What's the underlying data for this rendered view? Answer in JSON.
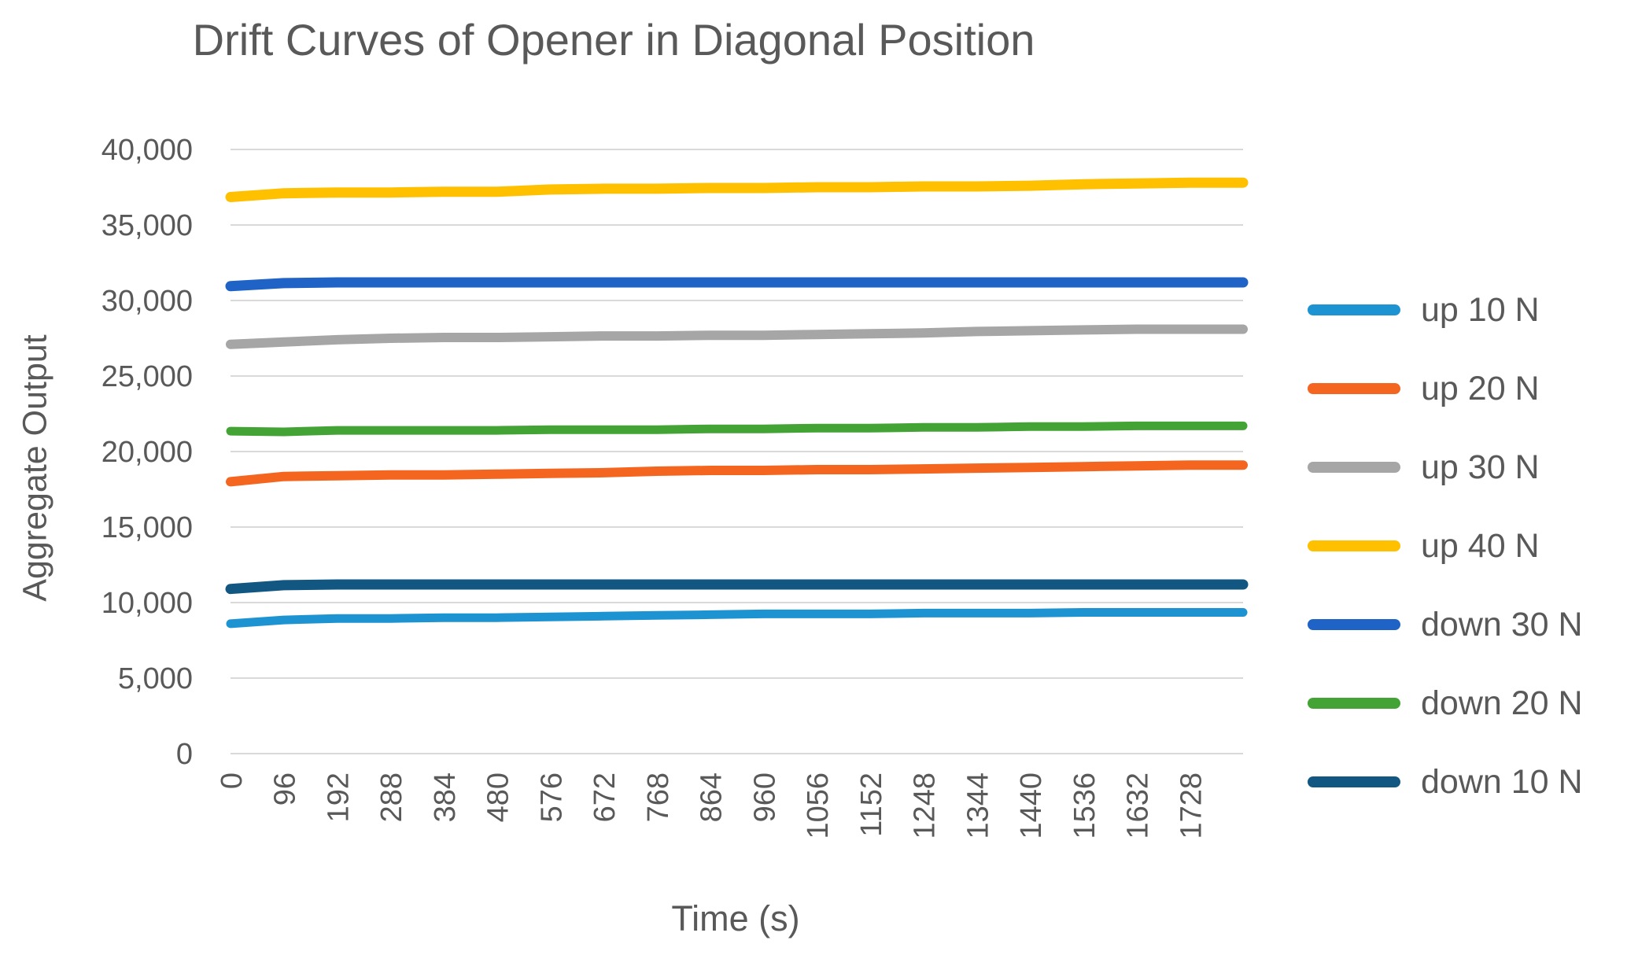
{
  "chart_data": {
    "type": "line",
    "title": "Drift Curves of Opener in Diagonal Position",
    "xlabel": "Time (s)",
    "ylabel": "Aggregate Output",
    "grid": "horizontal-only",
    "grid_color": "#d9d9d9",
    "text_color": "#595959",
    "legend_position": "right",
    "xlim": [
      0,
      1824
    ],
    "ylim": [
      0,
      40000
    ],
    "yticks": [
      0,
      5000,
      10000,
      15000,
      20000,
      25000,
      30000,
      35000,
      40000
    ],
    "xticks": [
      0,
      96,
      192,
      288,
      384,
      480,
      576,
      672,
      768,
      864,
      960,
      1056,
      1152,
      1248,
      1344,
      1440,
      1536,
      1632,
      1728
    ],
    "x": [
      0,
      96,
      192,
      288,
      384,
      480,
      576,
      672,
      768,
      864,
      960,
      1056,
      1152,
      1248,
      1344,
      1440,
      1536,
      1632,
      1728,
      1824
    ],
    "series": [
      {
        "name": "up 10 N",
        "color": "#1e93d2",
        "stroke_width": 11,
        "values": [
          8600,
          8850,
          8950,
          8950,
          9000,
          9000,
          9050,
          9100,
          9150,
          9200,
          9250,
          9250,
          9250,
          9300,
          9300,
          9300,
          9350,
          9350,
          9350,
          9350
        ]
      },
      {
        "name": "up 20 N",
        "color": "#f4661f",
        "stroke_width": 12,
        "values": [
          18000,
          18350,
          18400,
          18450,
          18450,
          18500,
          18550,
          18600,
          18700,
          18750,
          18750,
          18800,
          18800,
          18850,
          18900,
          18950,
          19000,
          19050,
          19100,
          19100
        ]
      },
      {
        "name": "up 30 N",
        "color": "#a6a6a6",
        "stroke_width": 12,
        "values": [
          27100,
          27250,
          27400,
          27500,
          27550,
          27550,
          27600,
          27650,
          27650,
          27700,
          27700,
          27750,
          27800,
          27850,
          27950,
          28000,
          28050,
          28100,
          28100,
          28100
        ]
      },
      {
        "name": "up 40 N",
        "color": "#ffc000",
        "stroke_width": 13,
        "values": [
          36850,
          37100,
          37150,
          37150,
          37200,
          37200,
          37350,
          37400,
          37400,
          37450,
          37450,
          37500,
          37500,
          37550,
          37550,
          37600,
          37700,
          37750,
          37800,
          37800
        ]
      },
      {
        "name": "down 30 N",
        "color": "#1e63c5",
        "stroke_width": 13,
        "values": [
          30950,
          31150,
          31200,
          31200,
          31200,
          31200,
          31200,
          31200,
          31200,
          31200,
          31200,
          31200,
          31200,
          31200,
          31200,
          31200,
          31200,
          31200,
          31200,
          31200
        ]
      },
      {
        "name": "down 20 N",
        "color": "#43a335",
        "stroke_width": 11,
        "values": [
          21350,
          21300,
          21400,
          21400,
          21400,
          21400,
          21450,
          21450,
          21450,
          21500,
          21500,
          21550,
          21550,
          21600,
          21600,
          21650,
          21650,
          21700,
          21700,
          21700
        ]
      },
      {
        "name": "down 10 N",
        "color": "#125782",
        "stroke_width": 13,
        "values": [
          10900,
          11150,
          11200,
          11200,
          11200,
          11200,
          11200,
          11200,
          11200,
          11200,
          11200,
          11200,
          11200,
          11200,
          11200,
          11200,
          11200,
          11200,
          11200,
          11200
        ]
      }
    ]
  }
}
